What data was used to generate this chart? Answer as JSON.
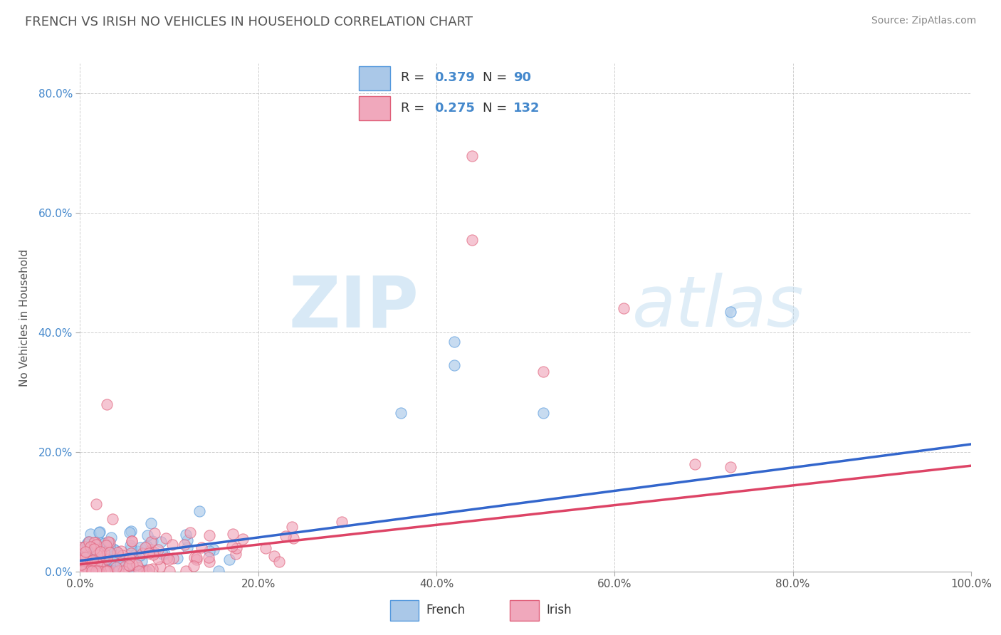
{
  "title": "FRENCH VS IRISH NO VEHICLES IN HOUSEHOLD CORRELATION CHART",
  "source": "Source: ZipAtlas.com",
  "ylabel": "No Vehicles in Household",
  "xlim": [
    0.0,
    1.0
  ],
  "ylim": [
    0.0,
    0.85
  ],
  "xticks": [
    0.0,
    0.2,
    0.4,
    0.6,
    0.8,
    1.0
  ],
  "xtick_labels": [
    "0.0%",
    "20.0%",
    "40.0%",
    "60.0%",
    "80.0%",
    "100.0%"
  ],
  "yticks": [
    0.0,
    0.2,
    0.4,
    0.6,
    0.8
  ],
  "ytick_labels": [
    "0.0%",
    "20.0%",
    "40.0%",
    "60.0%",
    "80.0%"
  ],
  "french_fill": "#aac8e8",
  "irish_fill": "#f0a8bc",
  "french_edge": "#5599dd",
  "irish_edge": "#e0607a",
  "french_line": "#3366cc",
  "irish_line": "#dd4466",
  "french_R": "0.379",
  "french_N": "90",
  "irish_R": "0.275",
  "irish_N": "132",
  "watermark_text": "ZIPatlas",
  "watermark_color": "#cce8f4",
  "background_color": "#ffffff",
  "grid_color": "#bbbbbb",
  "title_color": "#555555",
  "ylabel_color": "#555555",
  "ytick_color": "#4488cc",
  "xtick_color": "#555555",
  "legend_R_color": "#4488cc",
  "legend_label_color": "#333333",
  "source_color": "#888888"
}
